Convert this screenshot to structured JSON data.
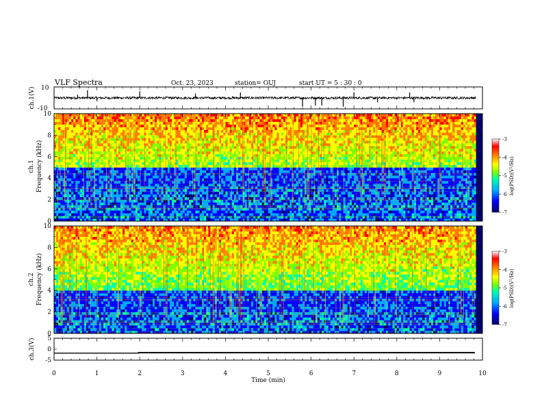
{
  "header": {
    "title": "VLF Spectra",
    "date": "Oct. 23, 2023",
    "station": "station= OUJ",
    "start": "start  UT =   5  : 30 : 0"
  },
  "colors": {
    "spectrogram_palette": [
      "#000066",
      "#0000ff",
      "#00aaff",
      "#00ffaa",
      "#7fff00",
      "#ffff00",
      "#ff7f00",
      "#ff0000",
      "#ffffff"
    ],
    "waveform": "#000000"
  },
  "chart_data": [
    {
      "type": "line",
      "name_panel": "waveform",
      "ylabel": "ch.1(V)",
      "ylim": [
        -10,
        10
      ],
      "yticks": [
        "10",
        "-10"
      ],
      "xlim": [
        0,
        10
      ],
      "baseline": 0,
      "spikes": [
        {
          "t": 0.55,
          "v": 3
        },
        {
          "t": 0.78,
          "v": 7
        },
        {
          "t": 1.0,
          "v": -3
        },
        {
          "t": 2.0,
          "v": 6
        },
        {
          "t": 3.3,
          "v": 4
        },
        {
          "t": 4.35,
          "v": 5
        },
        {
          "t": 5.8,
          "v": -8
        },
        {
          "t": 6.1,
          "v": -7
        },
        {
          "t": 6.25,
          "v": -7
        },
        {
          "t": 6.75,
          "v": -8
        },
        {
          "t": 7.0,
          "v": 5
        },
        {
          "t": 7.55,
          "v": -4
        },
        {
          "t": 8.3,
          "v": 5
        },
        {
          "t": 8.4,
          "v": -4
        }
      ]
    },
    {
      "type": "heatmap",
      "name_panel": "ch1-spectrogram",
      "ylabel": "ch.1",
      "ylabel2": "Frequency (kHz)",
      "xlim": [
        0,
        10
      ],
      "ylim": [
        0,
        10
      ],
      "yticks": [
        "0",
        "2",
        "4",
        "6",
        "8",
        "10"
      ],
      "colorbar": {
        "label": "log(PSD)(V²/Hz)",
        "ticks": [
          "-3",
          "-4",
          "-5",
          "-6",
          "-7"
        ],
        "range": [
          -7,
          -3
        ]
      },
      "bright_band_khz": [
        5,
        10
      ],
      "dark_band_khz": [
        3,
        5
      ]
    },
    {
      "type": "heatmap",
      "name_panel": "ch2-spectrogram",
      "ylabel": "ch.2",
      "ylabel2": "Frequency (kHz)",
      "xlim": [
        0,
        10
      ],
      "ylim": [
        0,
        10
      ],
      "yticks": [
        "0",
        "2",
        "4",
        "6",
        "8",
        "10"
      ],
      "colorbar": {
        "label": "log(PSD)(V²/Hz)",
        "ticks": [
          "-3",
          "-4",
          "-5",
          "-6",
          "-7"
        ],
        "range": [
          -7,
          -3
        ]
      },
      "bright_band_khz": [
        4,
        10
      ],
      "dark_band_khz": [
        2,
        4
      ]
    },
    {
      "type": "line",
      "name_panel": "ch3-trace",
      "ylabel": "ch.3(V)",
      "ylim": [
        -5,
        5
      ],
      "yticks": [
        "5",
        "0",
        "-5"
      ],
      "xlim": [
        0,
        10
      ],
      "x": [
        0,
        1.97,
        1.97,
        9.82
      ],
      "y": [
        -1.8,
        -1.8,
        -1.6,
        -1.6
      ],
      "xlabel": "Time (min)",
      "xticks": [
        "0",
        "1",
        "2",
        "3",
        "4",
        "5",
        "6",
        "7",
        "8",
        "9",
        "10"
      ]
    }
  ]
}
